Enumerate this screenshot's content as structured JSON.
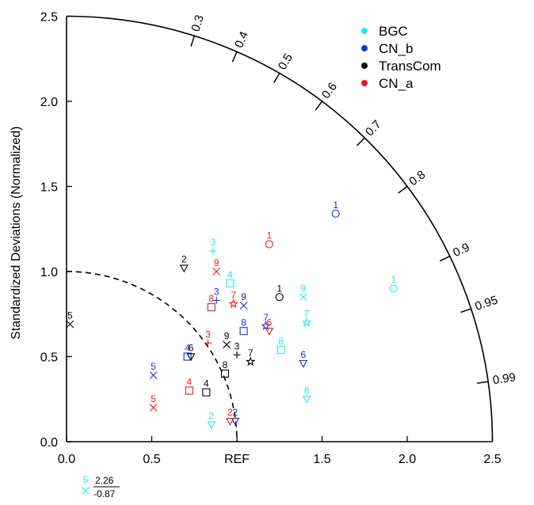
{
  "chart_data": {
    "type": "taylor",
    "ylabel": "Standardized Deviations (Normalized)",
    "ref_label": "REF",
    "std_ticks": [
      "0.0",
      "0.5",
      "1.0",
      "1.5",
      "2.0",
      "2.5"
    ],
    "std_max": 2.5,
    "corr_ticks": [
      "0.3",
      "0.4",
      "0.5",
      "0.6",
      "0.7",
      "0.8",
      "0.9",
      "0.95",
      "0.99"
    ],
    "ref_arc_radius": 1.0,
    "legend": {
      "placement": "top-right",
      "entries": [
        {
          "label": "BGC",
          "color": "#22e8f0"
        },
        {
          "label": "CN_b",
          "color": "#1a2ee0"
        },
        {
          "label": "TransCom",
          "color": "#000000"
        },
        {
          "label": "CN_a",
          "color": "#e8181a"
        }
      ]
    },
    "markers_by_index": {
      "1": "circle",
      "2": "tri-down",
      "3": "plus",
      "4": "square-open",
      "5": "x",
      "6": "tri-down",
      "7": "star",
      "8": "square",
      "9": "x"
    },
    "series": [
      {
        "color": "#22e8f0",
        "points": [
          {
            "label": "1",
            "x": 1.92,
            "y": 0.9
          },
          {
            "label": "2",
            "x": 0.85,
            "y": 0.1
          },
          {
            "label": "3",
            "x": 0.86,
            "y": 1.12
          },
          {
            "label": "4",
            "x": 0.96,
            "y": 0.93
          },
          {
            "label": "6",
            "x": 1.41,
            "y": 0.25
          },
          {
            "label": "7",
            "x": 1.41,
            "y": 0.7
          },
          {
            "label": "8",
            "x": 1.26,
            "y": 0.54
          },
          {
            "label": "9",
            "x": 1.39,
            "y": 0.85
          }
        ]
      },
      {
        "color": "#1a2ee0",
        "points": [
          {
            "label": "1",
            "x": 1.58,
            "y": 1.34
          },
          {
            "label": "2",
            "x": 0.99,
            "y": 0.12
          },
          {
            "label": "3",
            "x": 0.88,
            "y": 0.83
          },
          {
            "label": "4",
            "x": 0.71,
            "y": 0.5
          },
          {
            "label": "5",
            "x": 0.51,
            "y": 0.39
          },
          {
            "label": "6",
            "x": 1.39,
            "y": 0.46
          },
          {
            "label": "7",
            "x": 1.17,
            "y": 0.68
          },
          {
            "label": "8",
            "x": 1.04,
            "y": 0.65
          },
          {
            "label": "9",
            "x": 1.04,
            "y": 0.8
          }
        ]
      },
      {
        "color": "#000000",
        "points": [
          {
            "label": "1",
            "x": 1.25,
            "y": 0.85
          },
          {
            "label": "2",
            "x": 0.69,
            "y": 1.02
          },
          {
            "label": "3",
            "x": 1.0,
            "y": 0.51
          },
          {
            "label": "4",
            "x": 0.82,
            "y": 0.29
          },
          {
            "label": "5",
            "x": 0.02,
            "y": 0.69
          },
          {
            "label": "6",
            "x": 0.73,
            "y": 0.5
          },
          {
            "label": "7",
            "x": 1.08,
            "y": 0.47
          },
          {
            "label": "8",
            "x": 0.93,
            "y": 0.4
          },
          {
            "label": "9",
            "x": 0.94,
            "y": 0.57
          }
        ]
      },
      {
        "color": "#e8181a",
        "points": [
          {
            "label": "1",
            "x": 1.19,
            "y": 1.16
          },
          {
            "label": "2",
            "x": 0.96,
            "y": 0.12
          },
          {
            "label": "3",
            "x": 0.83,
            "y": 0.58
          },
          {
            "label": "4",
            "x": 0.72,
            "y": 0.3
          },
          {
            "label": "5",
            "x": 0.51,
            "y": 0.2
          },
          {
            "label": "6",
            "x": 1.19,
            "y": 0.65
          },
          {
            "label": "7",
            "x": 0.98,
            "y": 0.81
          },
          {
            "label": "8",
            "x": 0.85,
            "y": 0.79
          },
          {
            "label": "9",
            "x": 0.88,
            "y": 1.0
          }
        ]
      }
    ],
    "outlier_note": {
      "label": "5",
      "color": "#22e8f0",
      "std": "2.26",
      "corr": "-0.87"
    }
  }
}
